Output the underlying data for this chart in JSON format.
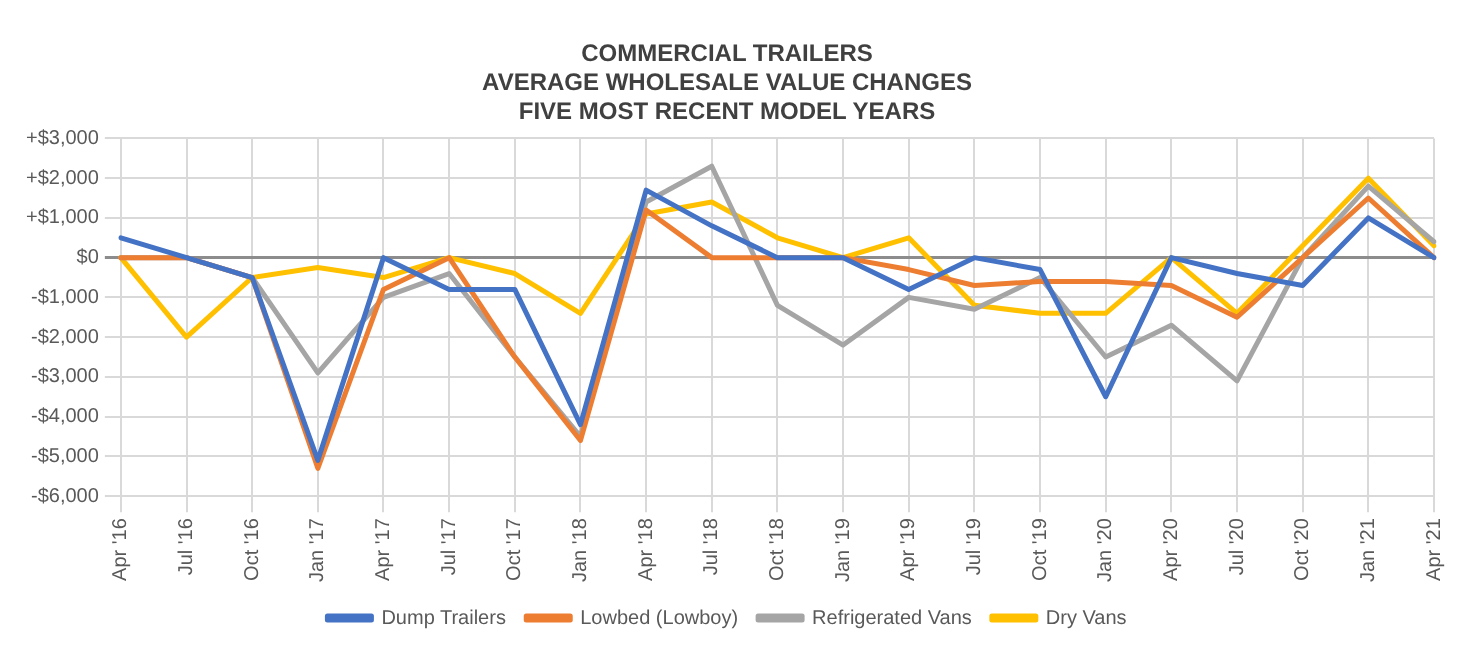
{
  "chart_data": {
    "type": "line",
    "title": [
      "COMMERCIAL TRAILERS",
      "AVERAGE WHOLESALE VALUE CHANGES",
      "FIVE MOST RECENT MODEL YEARS"
    ],
    "categories": [
      "Apr '16",
      "Jul '16",
      "Oct '16",
      "Jan '17",
      "Apr '17",
      "Jul '17",
      "Oct '17",
      "Jan '18",
      "Apr '18",
      "Jul '18",
      "Oct '18",
      "Jan '19",
      "Apr '19",
      "Jul '19",
      "Oct '19",
      "Jan '20",
      "Apr '20",
      "Jul '20",
      "Oct '20",
      "Jan '21",
      "Apr '21"
    ],
    "series": [
      {
        "name": "Dump Trailers",
        "color": "#4472c4",
        "values": [
          500,
          0,
          -500,
          -5100,
          0,
          -800,
          -800,
          -4200,
          1700,
          800,
          0,
          0,
          -800,
          0,
          -300,
          -3500,
          0,
          -400,
          -700,
          1000,
          0
        ]
      },
      {
        "name": "Lowbed (Lowboy)",
        "color": "#ed7d31",
        "values": [
          0,
          0,
          -500,
          -5300,
          -800,
          0,
          -2500,
          -4600,
          1200,
          0,
          0,
          0,
          -300,
          -700,
          -600,
          -600,
          -700,
          -1500,
          0,
          1500,
          0
        ]
      },
      {
        "name": "Refrigerated Vans",
        "color": "#a5a5a5",
        "values": [
          0,
          0,
          -500,
          -2900,
          -1000,
          -400,
          -2500,
          -4500,
          1400,
          2300,
          -1200,
          -2200,
          -1000,
          -1300,
          -500,
          -2500,
          -1700,
          -3100,
          0,
          1800,
          400
        ]
      },
      {
        "name": "Dry Vans",
        "color": "#ffc000",
        "values": [
          0,
          -2000,
          -500,
          -250,
          -500,
          0,
          -400,
          -1400,
          1100,
          1400,
          500,
          0,
          500,
          -1200,
          -1400,
          -1400,
          0,
          -1400,
          300,
          2000,
          300
        ]
      }
    ],
    "ylim": [
      -6000,
      3000
    ],
    "yticks": [
      {
        "value": -6000,
        "label": "-$6,000"
      },
      {
        "value": -5000,
        "label": "-$5,000"
      },
      {
        "value": -4000,
        "label": "-$4,000"
      },
      {
        "value": -3000,
        "label": "-$3,000"
      },
      {
        "value": -2000,
        "label": "-$2,000"
      },
      {
        "value": -1000,
        "label": "-$1,000"
      },
      {
        "value": 0,
        "label": "$0"
      },
      {
        "value": 1000,
        "label": "+$1,000"
      },
      {
        "value": 2000,
        "label": "+$2,000"
      },
      {
        "value": 3000,
        "label": "+$3,000"
      }
    ],
    "grid": true,
    "legend": "bottom",
    "marker": "none",
    "line_style": "solid"
  }
}
